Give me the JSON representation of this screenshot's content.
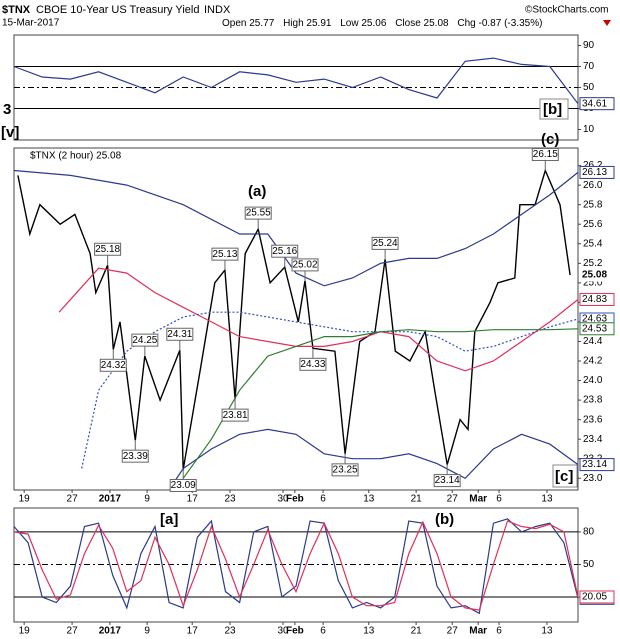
{
  "header": {
    "symbol": "$TNX",
    "name": "CBOE 10-Year US Treasury Yield",
    "exchange": "INDX",
    "date": "15-Mar-2017",
    "quote": [
      {
        "label": "Open",
        "value": 25.77
      },
      {
        "label": "High",
        "value": 25.91
      },
      {
        "label": "Low",
        "value": 25.06
      },
      {
        "label": "Close",
        "value": 25.08
      },
      {
        "label": "Chg",
        "value": "-0.87 (-3.35%)"
      }
    ],
    "copyright": "©StockCharts.com"
  },
  "wave_labels": [
    {
      "text": "3",
      "color": "#9b30ff"
    },
    {
      "text": "[v]",
      "color": "#d40000"
    },
    {
      "text": "[b]",
      "color": "#d40000"
    },
    {
      "text": "(c)",
      "color": "#228b22"
    },
    {
      "text": "(a)",
      "color": "#228b22"
    },
    {
      "text": "[a]",
      "color": "#d40000"
    },
    {
      "text": "(b)",
      "color": "#228b22"
    },
    {
      "text": "[c]",
      "color": "#d40000"
    }
  ],
  "chart_data": [
    {
      "type": "line",
      "xlim": [
        0,
        100
      ],
      "ylim": [
        0,
        100
      ],
      "yticks": [
        10,
        30,
        50,
        70,
        90
      ],
      "reference_lines": [
        {
          "value": 70,
          "style": "solid"
        },
        {
          "value": 50,
          "style": "dashdot"
        },
        {
          "value": 30,
          "style": "solid"
        }
      ],
      "series": [
        {
          "color": "#2b3a8c",
          "x": [
            0,
            5,
            10,
            15,
            20,
            25,
            30,
            35,
            40,
            45,
            50,
            55,
            60,
            65,
            70,
            75,
            80,
            85,
            90,
            95,
            100
          ],
          "values": [
            70,
            60,
            58,
            65,
            55,
            45,
            60,
            50,
            65,
            62,
            55,
            58,
            50,
            60,
            48,
            40,
            75,
            78,
            72,
            70,
            34.61
          ]
        }
      ]
    },
    {
      "type": "line",
      "xlim": [
        0,
        100
      ],
      "ylim": [
        22.88,
        26.38
      ],
      "yticks": [
        {
          "value": 23,
          "label": "23.0"
        },
        {
          "value": 23.2,
          "label": "23.2"
        },
        {
          "value": 23.4,
          "label": "23.4"
        },
        {
          "value": 23.6,
          "label": "23.6"
        },
        {
          "value": 23.8,
          "label": "23.8"
        },
        {
          "value": 24,
          "label": "24.0"
        },
        {
          "value": 24.2,
          "label": "24.2"
        },
        {
          "value": 24.4,
          "label": "24.4"
        },
        {
          "value": 24.6,
          "label": "24.6"
        },
        {
          "value": 24.8,
          "label": "24.8"
        },
        {
          "value": 25,
          "label": "25.0"
        },
        {
          "value": 25.2,
          "label": "25.2"
        },
        {
          "value": 25.4,
          "label": "25.4"
        },
        {
          "value": 25.6,
          "label": "25.6"
        },
        {
          "value": 25.8,
          "label": "25.8"
        },
        {
          "value": 26,
          "label": "26.0"
        },
        {
          "value": 26.2,
          "label": "26.2"
        }
      ],
      "xticks": [
        {
          "value": 1.8,
          "label": "19"
        },
        {
          "value": 10.3,
          "label": "27"
        },
        {
          "value": 17.0,
          "label": "2017"
        },
        {
          "value": 23.6,
          "label": "9"
        },
        {
          "value": 31.6,
          "label": "17"
        },
        {
          "value": 38.3,
          "label": "23"
        },
        {
          "value": 47.7,
          "label": "30"
        },
        {
          "value": 49.8,
          "label": "Feb"
        },
        {
          "value": 54.8,
          "label": "6"
        },
        {
          "value": 62.9,
          "label": "13"
        },
        {
          "value": 71.3,
          "label": "21"
        },
        {
          "value": 77.7,
          "label": "27"
        },
        {
          "value": 82.3,
          "label": "Mar"
        },
        {
          "value": 86.0,
          "label": "6"
        },
        {
          "value": 94.5,
          "label": "13"
        }
      ],
      "series": [
        {
          "name": "$TNX (2 hour) 25.08",
          "color": "#000000",
          "x": [
            0.7,
            2.8,
            4.6,
            8.2,
            10.8,
            13.5,
            14.5,
            16.6,
            17.6,
            18.8,
            21.5,
            23.2,
            25.9,
            29.4,
            30,
            33,
            35.6,
            37.4,
            39.2,
            41,
            43.3,
            45.4,
            48,
            50.4,
            51.6,
            53,
            56.9,
            58.7,
            61.3,
            64,
            65.8,
            67.6,
            70.2,
            72.9,
            74.6,
            76.8,
            79.1,
            80.5,
            81.7,
            84.4,
            85.8,
            88.8,
            89.7,
            92.4,
            94.2,
            96.8,
            98.6
          ],
          "values": [
            26.1,
            25.5,
            25.8,
            25.6,
            25.7,
            25.3,
            24.9,
            25.18,
            24.32,
            24.6,
            23.39,
            24.25,
            23.8,
            24.31,
            23.09,
            24.1,
            25.0,
            25.13,
            23.81,
            25.3,
            25.55,
            25.0,
            25.16,
            24.6,
            25.02,
            24.33,
            24.3,
            23.25,
            24.4,
            24.5,
            25.24,
            24.3,
            24.2,
            24.5,
            23.9,
            23.14,
            23.6,
            23.5,
            24.5,
            24.8,
            25.0,
            25.05,
            25.8,
            25.8,
            26.15,
            25.8,
            25.08
          ]
        },
        {
          "color": "#2b3a8c",
          "x": [
            0,
            10,
            20,
            30,
            40,
            45,
            50,
            55,
            60,
            65,
            70,
            75,
            80,
            85,
            90,
            95,
            100
          ],
          "values": [
            26.15,
            26.1,
            26.0,
            25.8,
            25.5,
            25.5,
            25.1,
            24.97,
            25.05,
            25.2,
            25.25,
            25.25,
            25.35,
            25.5,
            25.7,
            25.9,
            26.13
          ]
        },
        {
          "color": "#2b3a8c",
          "x": [
            27.7,
            30,
            35,
            40,
            45,
            50,
            55,
            60,
            65,
            70,
            75,
            80,
            85,
            90,
            95,
            100
          ],
          "values": [
            22.9,
            23.1,
            23.3,
            23.45,
            23.5,
            23.45,
            23.25,
            23.2,
            23.2,
            23.25,
            23.15,
            23.0,
            23.3,
            23.45,
            23.35,
            23.14
          ]
        },
        {
          "color": "#e0305a",
          "x": [
            8,
            15,
            20,
            25,
            30,
            35,
            40,
            45,
            50,
            55,
            60,
            65,
            70,
            75,
            80,
            85,
            90,
            95,
            100
          ],
          "values": [
            24.7,
            25.15,
            25.1,
            24.9,
            24.75,
            24.6,
            24.45,
            24.4,
            24.35,
            24.35,
            24.4,
            24.5,
            24.45,
            24.2,
            24.1,
            24.2,
            24.4,
            24.6,
            24.83
          ]
        },
        {
          "color": "#3050c0",
          "dashed": true,
          "x": [
            12,
            15,
            20,
            25,
            30,
            35,
            40,
            45,
            50,
            55,
            60,
            65,
            70,
            75,
            80,
            85,
            90,
            95,
            100
          ],
          "values": [
            23.1,
            23.9,
            24.3,
            24.5,
            24.65,
            24.7,
            24.7,
            24.65,
            24.6,
            24.55,
            24.5,
            24.5,
            24.5,
            24.45,
            24.3,
            24.35,
            24.45,
            24.55,
            24.63
          ]
        },
        {
          "color": "#2e7d32",
          "x": [
            30,
            35,
            40,
            45,
            50,
            55,
            60,
            65,
            70,
            75,
            80,
            85,
            90,
            95,
            100
          ],
          "values": [
            23.0,
            23.4,
            23.9,
            24.25,
            24.35,
            24.45,
            24.45,
            24.5,
            24.52,
            24.5,
            24.5,
            24.52,
            24.52,
            24.52,
            24.53
          ]
        }
      ],
      "annotations": [
        {
          "x": 16.6,
          "y": 25.18
        },
        {
          "x": 17.6,
          "y": 24.32
        },
        {
          "x": 21.5,
          "y": 23.39
        },
        {
          "x": 23.2,
          "y": 24.25
        },
        {
          "x": 29.4,
          "y": 24.31
        },
        {
          "x": 30,
          "y": 23.09
        },
        {
          "x": 37.4,
          "y": 25.13
        },
        {
          "x": 39.2,
          "y": 23.81
        },
        {
          "x": 43.3,
          "y": 25.55
        },
        {
          "x": 48,
          "y": 25.16
        },
        {
          "x": 51.6,
          "y": 25.02
        },
        {
          "x": 53,
          "y": 24.33
        },
        {
          "x": 58.7,
          "y": 23.25
        },
        {
          "x": 65.8,
          "y": 25.24
        },
        {
          "x": 76.8,
          "y": 23.14
        },
        {
          "x": 94.2,
          "y": 26.15
        }
      ]
    },
    {
      "type": "line",
      "xlim": [
        0,
        100
      ],
      "ylim": [
        -3,
        102
      ],
      "yticks": [
        20,
        50,
        80
      ],
      "reference_lines": [
        {
          "value": 80,
          "style": "solid"
        },
        {
          "value": 50,
          "style": "dashdot"
        },
        {
          "value": 20,
          "style": "solid"
        }
      ],
      "series": [
        {
          "color": "#2b3a8c",
          "x": [
            0,
            2.5,
            5,
            7.5,
            10,
            12.5,
            15,
            17.5,
            20,
            22.5,
            25,
            27.5,
            30,
            32.5,
            35,
            37.5,
            40,
            42.5,
            45,
            47.5,
            50,
            52.5,
            55,
            57.5,
            60,
            62.5,
            65,
            67.5,
            70,
            72.5,
            75,
            77.5,
            80,
            82.5,
            85,
            87.5,
            90,
            92.5,
            95,
            97.5,
            100
          ],
          "values": [
            85,
            70,
            20,
            15,
            30,
            85,
            88,
            40,
            10,
            60,
            85,
            15,
            10,
            75,
            90,
            25,
            15,
            80,
            85,
            20,
            30,
            90,
            88,
            35,
            10,
            15,
            10,
            20,
            90,
            88,
            30,
            10,
            12,
            5,
            88,
            92,
            80,
            85,
            88,
            70,
            18.83
          ]
        },
        {
          "color": "#e0305a",
          "x": [
            0,
            2.5,
            5,
            7.5,
            10,
            12.5,
            15,
            17.5,
            20,
            22.5,
            25,
            27.5,
            30,
            32.5,
            35,
            37.5,
            40,
            42.5,
            45,
            47.5,
            50,
            52.5,
            55,
            57.5,
            60,
            62.5,
            65,
            67.5,
            70,
            72.5,
            75,
            77.5,
            80,
            82.5,
            85,
            87.5,
            90,
            92.5,
            95,
            97.5,
            100
          ],
          "values": [
            80,
            78,
            45,
            18,
            22,
            60,
            86,
            65,
            25,
            35,
            75,
            50,
            12,
            45,
            85,
            55,
            20,
            50,
            82,
            50,
            25,
            60,
            88,
            60,
            20,
            12,
            12,
            15,
            60,
            89,
            60,
            20,
            10,
            8,
            50,
            90,
            85,
            83,
            87,
            80,
            20.05
          ]
        }
      ]
    }
  ]
}
